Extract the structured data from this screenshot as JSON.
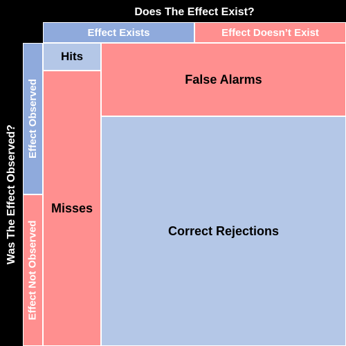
{
  "title_top": "Does The Effect Exist?",
  "title_left": "Was The Effect Observed?",
  "column_headers": {
    "exists": "Effect Exists",
    "not_exists": "Effect Doesn’t Exist"
  },
  "row_headers": {
    "observed": "Effect Observed",
    "not_observed": "Effect Not Observed"
  },
  "cells": {
    "hits": "Hits",
    "misses": "Misses",
    "false_alarms": "False Alarms",
    "correct_rejections": "Correct Rejections"
  },
  "colors": {
    "background": "#000000",
    "blue": "#b4c7e7",
    "blue_header": "#8faadc",
    "red": "#ff8f8f",
    "text_dark": "#000000",
    "text_light": "#ffffff"
  }
}
